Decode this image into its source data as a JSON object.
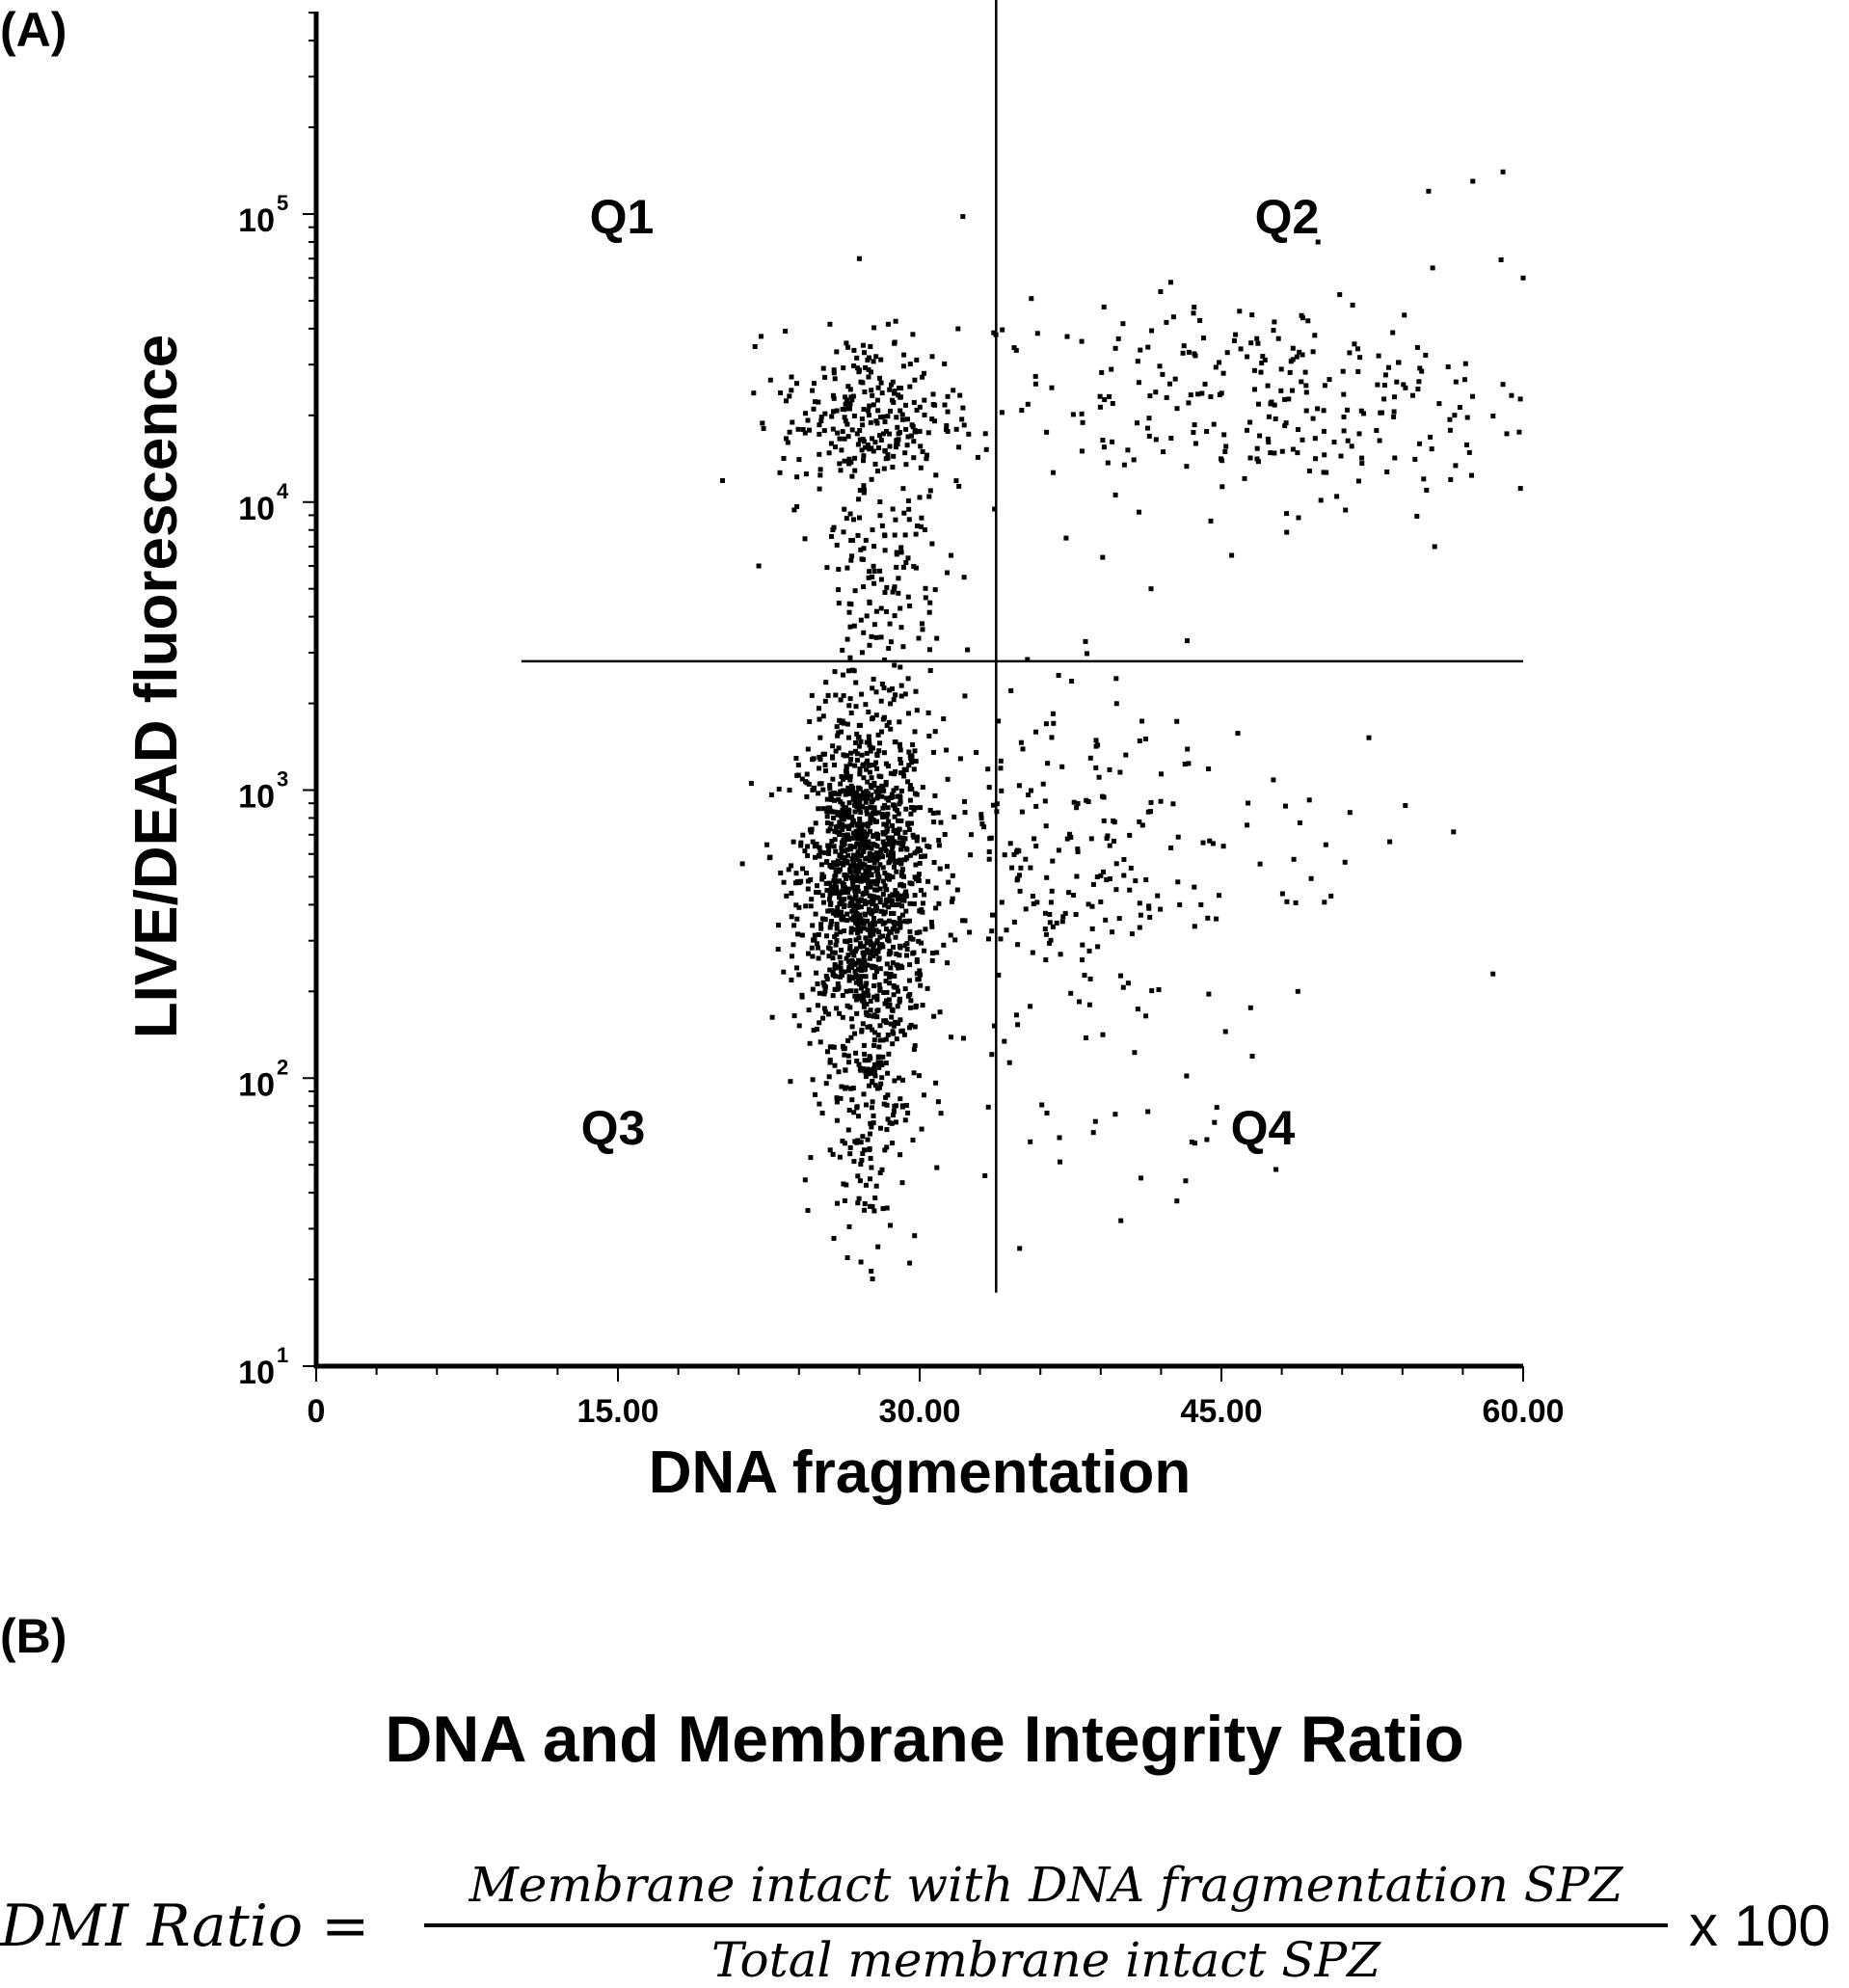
{
  "panels": {
    "a_label": "(A)",
    "b_label": "(B)"
  },
  "chart_data": {
    "type": "scatter",
    "title": "",
    "xlabel": "DNA fragmentation",
    "ylabel": "LIVE/DEAD fluorescence",
    "xlim": [
      0,
      60
    ],
    "ylim": [
      10,
      700000
    ],
    "y_scale": "log",
    "x_ticks": [
      {
        "value": 0,
        "label": "0"
      },
      {
        "value": 15,
        "label": "15.00"
      },
      {
        "value": 30,
        "label": "30.00"
      },
      {
        "value": 45,
        "label": "45.00"
      },
      {
        "value": 60,
        "label": "60.00"
      }
    ],
    "y_ticks": [
      {
        "value": 10,
        "base": "10",
        "exp": "1"
      },
      {
        "value": 100,
        "base": "10",
        "exp": "2"
      },
      {
        "value": 1000,
        "base": "10",
        "exp": "3"
      },
      {
        "value": 10000,
        "base": "10",
        "exp": "4"
      },
      {
        "value": 100000,
        "base": "10",
        "exp": "5"
      }
    ],
    "gates": {
      "x": 33.8,
      "y": 2800,
      "x_range": [
        10.2,
        60
      ],
      "y_range": [
        18,
        700000
      ]
    },
    "quadrants": [
      "Q1",
      "Q2",
      "Q3",
      "Q4"
    ],
    "clusters": [
      {
        "cx": 27.2,
        "cy_log": 2.7,
        "sx": 1.6,
        "sy_log": 0.28,
        "n": 1300
      },
      {
        "cx": 27.5,
        "cy_log": 2.0,
        "sx": 1.2,
        "sy_log": 0.3,
        "n": 240
      },
      {
        "cx": 27.5,
        "cy_log": 4.3,
        "sx": 2.2,
        "sy_log": 0.15,
        "n": 250
      },
      {
        "cx": 28.0,
        "cy_log": 3.75,
        "sx": 1.6,
        "sy_log": 0.32,
        "n": 170
      },
      {
        "cx": 47.0,
        "cy_log": 4.35,
        "sx": 7.5,
        "sy_log": 0.18,
        "n": 300
      },
      {
        "cx": 36.0,
        "cy_log": 2.8,
        "sx": 3.5,
        "sy_log": 0.3,
        "n": 200
      },
      {
        "cx": 46.0,
        "cy_log": 2.85,
        "sx": 6.0,
        "sy_log": 0.18,
        "n": 55
      },
      {
        "cx": 38.0,
        "cy_log": 2.1,
        "sx": 4.0,
        "sy_log": 0.35,
        "n": 45
      }
    ],
    "outliers": [
      {
        "x": 27.0,
        "y": 70000
      },
      {
        "x": 22.0,
        "y": 6000
      },
      {
        "x": 57.5,
        "y": 130000
      },
      {
        "x": 55.3,
        "y": 120000
      },
      {
        "x": 59.0,
        "y": 140000
      },
      {
        "x": 49.8,
        "y": 80000
      },
      {
        "x": 55.5,
        "y": 65000
      },
      {
        "x": 41.5,
        "y": 5000
      },
      {
        "x": 43.3,
        "y": 3300
      },
      {
        "x": 40.0,
        "y": 32
      },
      {
        "x": 41.0,
        "y": 45
      },
      {
        "x": 58.5,
        "y": 230
      },
      {
        "x": 45.2,
        "y": 145
      },
      {
        "x": 55.6,
        "y": 7000
      },
      {
        "x": 55.2,
        "y": 11000
      },
      {
        "x": 60.0,
        "y": 60000
      },
      {
        "x": 48.8,
        "y": 200
      }
    ]
  },
  "formula": {
    "title": "DNA and Membrane Integrity Ratio",
    "lhs": "DMI Ratio =",
    "numerator": "Membrane intact with DNA fragmentation SPZ",
    "denominator": "Total membrane intact SPZ",
    "multiplier": "x 100"
  }
}
